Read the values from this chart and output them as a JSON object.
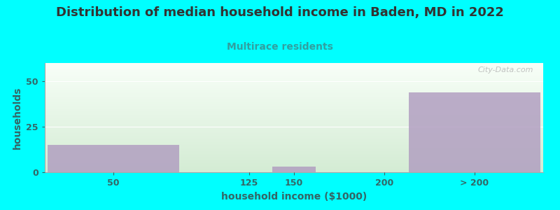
{
  "title": "Distribution of median household income in Baden, MD in 2022",
  "subtitle": "Multirace residents",
  "xlabel": "household income ($1000)",
  "ylabel": "households",
  "bar_categories": [
    "50",
    "125",
    "150",
    "200",
    "> 200"
  ],
  "bar_values": [
    15,
    0,
    3,
    0,
    44
  ],
  "bar_color": "#b09cc0",
  "bar_positions": [
    50,
    125,
    150,
    200,
    250
  ],
  "bar_widths": [
    75,
    25,
    25,
    25,
    75
  ],
  "ylim": [
    0,
    60
  ],
  "yticks": [
    0,
    25,
    50
  ],
  "xtick_labels": [
    "50",
    "125",
    "150",
    "200",
    "> 200"
  ],
  "xtick_positions": [
    50,
    125,
    150,
    200,
    250
  ],
  "xlim": [
    12,
    288
  ],
  "background_color": "#00ffff",
  "plot_bg_gradient_top": "#f8fff8",
  "plot_bg_gradient_bottom": "#d4ecd4",
  "title_color": "#333333",
  "subtitle_color": "#30a0a0",
  "axis_label_color": "#336666",
  "tick_color": "#336666",
  "watermark": "City-Data.com",
  "title_fontsize": 13,
  "subtitle_fontsize": 10,
  "label_fontsize": 10,
  "tick_fontsize": 9
}
